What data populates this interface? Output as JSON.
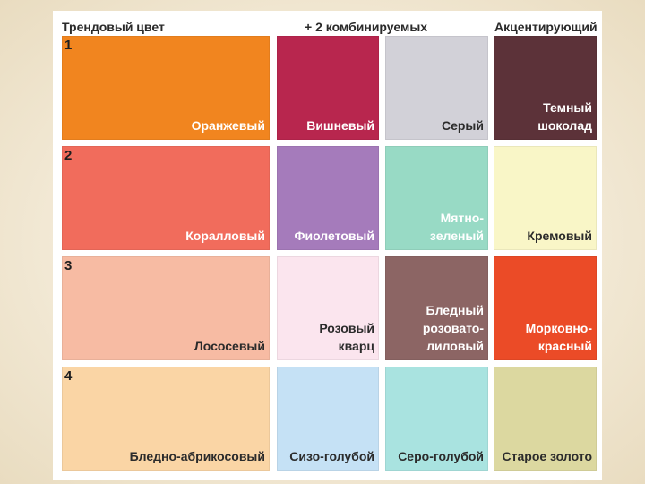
{
  "headers": {
    "trend": "Трендовый цвет",
    "combo": "+ 2 комбинируемых",
    "accent": "Акцентирующий"
  },
  "rows": [
    {
      "number": "1",
      "main": {
        "label": "Оранжевый",
        "color": "#f1851f"
      },
      "combo1": {
        "label": "Вишневый",
        "color": "#b8264e"
      },
      "combo2": {
        "label": "Серый",
        "color": "#d2d1d8"
      },
      "accent": {
        "label": "Темный\nшоколад",
        "color": "#5c3239"
      }
    },
    {
      "number": "2",
      "main": {
        "label": "Коралловый",
        "color": "#f16c5c"
      },
      "combo1": {
        "label": "Фиолетовый",
        "color": "#a57bbb"
      },
      "combo2": {
        "label": "Мятно-\nзеленый",
        "color": "#98dac5"
      },
      "accent": {
        "label": "Кремовый",
        "color": "#f9f6c7"
      }
    },
    {
      "number": "3",
      "main": {
        "label": "Лососевый",
        "color": "#f7bba3"
      },
      "combo1": {
        "label": "Розовый\nкварц",
        "color": "#fbe5ee"
      },
      "combo2": {
        "label": "Бледный\nрозовато-\nлиловый",
        "color": "#8c6564"
      },
      "accent": {
        "label": "Морковно-\nкрасный",
        "color": "#eb4b27"
      }
    },
    {
      "number": "4",
      "main": {
        "label": "Бледно-абрикосовый",
        "color": "#fad5a5"
      },
      "combo1": {
        "label": "Сизо-голубой",
        "color": "#c5e1f5"
      },
      "combo2": {
        "label": "Серо-голубой",
        "color": "#a9e3e0"
      },
      "accent": {
        "label": "Старое золото",
        "color": "#dcd8a0"
      }
    }
  ]
}
